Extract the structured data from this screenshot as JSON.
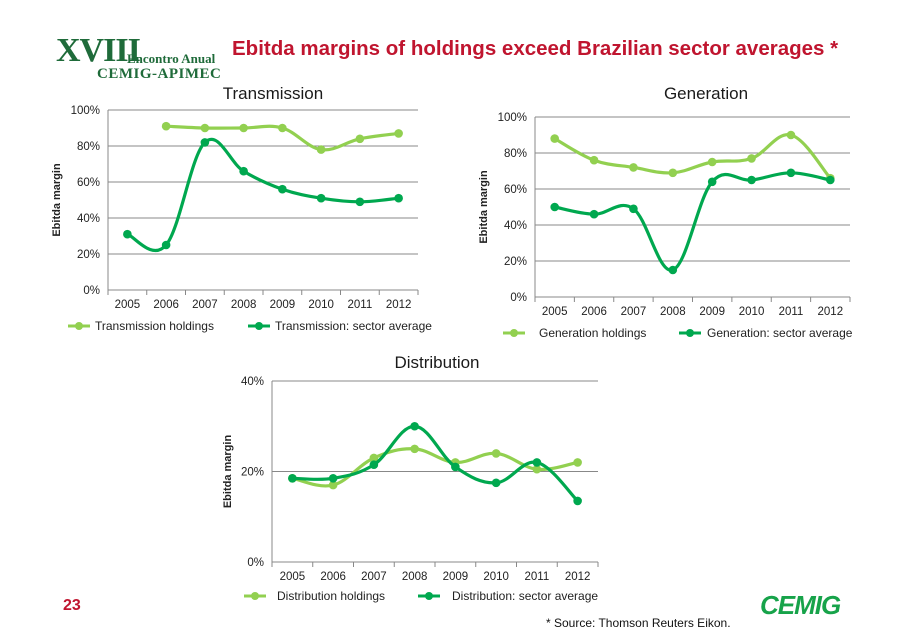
{
  "logo": {
    "roman": "XVIII",
    "event": "Encontro Anual",
    "org": "CEMIG-APIMEC"
  },
  "headline": "Ebitda margins of holdings exceed Brazilian sector averages *",
  "page_number": "23",
  "source_note": "* Source: Thomson Reuters Eikon.",
  "brand": "CEMIG",
  "colors": {
    "holdings": "#92d050",
    "sector": "#00a84f",
    "title_red": "#c0152f",
    "grid": "#888888"
  },
  "chart_data": [
    {
      "type": "line",
      "title": "Transmission",
      "ylabel": "Ebitda margin",
      "x": [
        "2005",
        "2006",
        "2007",
        "2008",
        "2009",
        "2010",
        "2011",
        "2012"
      ],
      "ylim": [
        0,
        100
      ],
      "yticks": [
        "0%",
        "20%",
        "40%",
        "60%",
        "80%",
        "100%"
      ],
      "grid": true,
      "legend": "bottom",
      "series": [
        {
          "name": "Transmission holdings",
          "values": [
            null,
            91,
            90,
            90,
            90,
            78,
            84,
            87
          ]
        },
        {
          "name": "Transmission: sector average",
          "values": [
            31,
            25,
            82,
            66,
            56,
            51,
            49,
            51
          ]
        }
      ]
    },
    {
      "type": "line",
      "title": "Generation",
      "ylabel": "Ebitda margin",
      "x": [
        "2005",
        "2006",
        "2007",
        "2008",
        "2009",
        "2010",
        "2011",
        "2012"
      ],
      "ylim": [
        0,
        100
      ],
      "yticks": [
        "0%",
        "20%",
        "40%",
        "60%",
        "80%",
        "100%"
      ],
      "grid": true,
      "legend": "bottom",
      "series": [
        {
          "name": "Generation holdings",
          "values": [
            88,
            76,
            72,
            69,
            75,
            77,
            90,
            66
          ]
        },
        {
          "name": "Generation: sector average",
          "values": [
            50,
            46,
            49,
            15,
            64,
            65,
            69,
            65
          ]
        }
      ]
    },
    {
      "type": "line",
      "title": "Distribution",
      "ylabel": "Ebitda margin",
      "x": [
        "2005",
        "2006",
        "2007",
        "2008",
        "2009",
        "2010",
        "2011",
        "2012"
      ],
      "ylim": [
        0,
        40
      ],
      "yticks": [
        "0%",
        "20%",
        "40%"
      ],
      "grid": true,
      "legend": "bottom",
      "series": [
        {
          "name": "Distribution holdings",
          "values": [
            18.5,
            17,
            23,
            25,
            22,
            24,
            20.5,
            22
          ]
        },
        {
          "name": "Distribution: sector average",
          "values": [
            18.5,
            18.5,
            21.5,
            30,
            21,
            17.5,
            22,
            13.5
          ]
        }
      ]
    }
  ]
}
